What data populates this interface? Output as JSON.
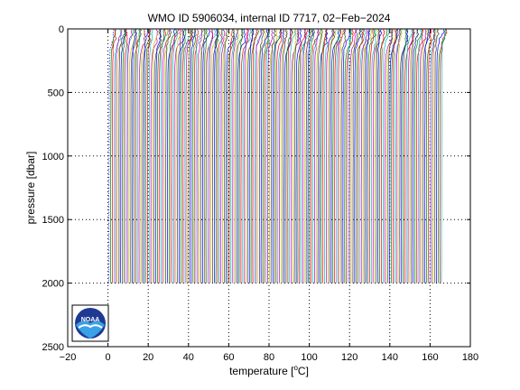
{
  "chart_data": {
    "type": "line",
    "title": "WMO ID 5906034, internal ID 7717, 02−Feb−2024",
    "xlabel_prefix": "temperature [",
    "xlabel_unit_super": "o",
    "xlabel_unit_suffix": "C]",
    "ylabel": "pressure [dbar]",
    "xlim": [
      -20,
      180
    ],
    "ylim": [
      0,
      2500
    ],
    "y_reversed": true,
    "x_ticks": [
      -20,
      0,
      20,
      40,
      60,
      80,
      100,
      120,
      140,
      160,
      180
    ],
    "x_tick_labels": [
      "−20",
      "0",
      "20",
      "40",
      "60",
      "80",
      "100",
      "120",
      "140",
      "160",
      "180"
    ],
    "y_ticks": [
      0,
      500,
      1000,
      1500,
      2000,
      2500
    ],
    "y_tick_labels": [
      "0",
      "500",
      "1000",
      "1500",
      "2000",
      "2500"
    ],
    "grid": "dotted",
    "profile_count": 200,
    "profile_offset_step": 0.83,
    "first_profile_deep_temp": 0.5,
    "profile_surface_warming": 2.0,
    "profile_max_pressure": 2000,
    "series_colors": [
      "#0000ff",
      "#008000",
      "#ff0000",
      "#00bfbf",
      "#bf00bf",
      "#bfbf00",
      "#404040"
    ],
    "logo": "noaa-logo"
  }
}
